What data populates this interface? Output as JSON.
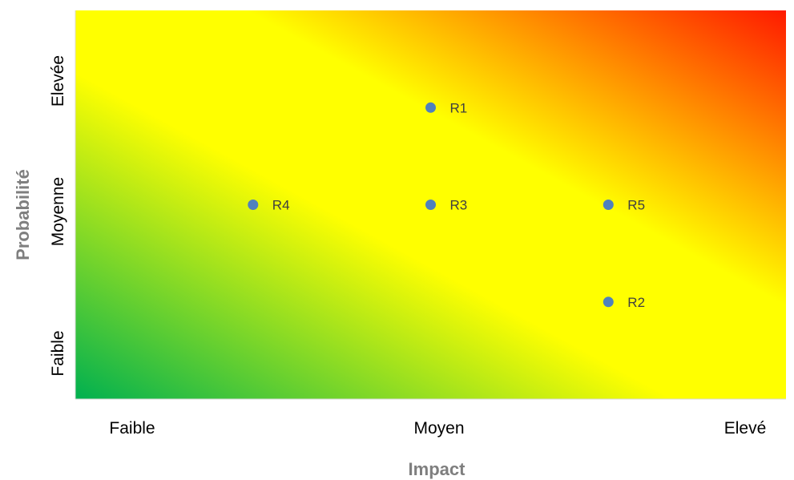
{
  "colors": {
    "gradient_low": "#00b050",
    "gradient_mid": "#ffff00",
    "gradient_high": "#ff0000",
    "point": "#4f81bd",
    "axis_title": "#7f7f7f"
  },
  "chart_data": {
    "type": "scatter",
    "title": "",
    "xlabel": "Impact",
    "ylabel": "Probabilité",
    "x_ticks": [
      "Faible",
      "Moyen",
      "Elevé"
    ],
    "y_ticks": [
      "Faible",
      "Moyenne",
      "Elevée"
    ],
    "xlim": [
      0,
      4
    ],
    "ylim": [
      0,
      4
    ],
    "grid": false,
    "legend": "none",
    "background": "diagonal gradient green (bottom-left) to yellow to red (top-right)",
    "points": [
      {
        "label": "R1",
        "x": 2.0,
        "y": 3.0
      },
      {
        "label": "R2",
        "x": 3.0,
        "y": 1.0
      },
      {
        "label": "R3",
        "x": 2.0,
        "y": 2.0
      },
      {
        "label": "R4",
        "x": 1.0,
        "y": 2.0
      },
      {
        "label": "R5",
        "x": 3.0,
        "y": 2.0
      }
    ]
  }
}
